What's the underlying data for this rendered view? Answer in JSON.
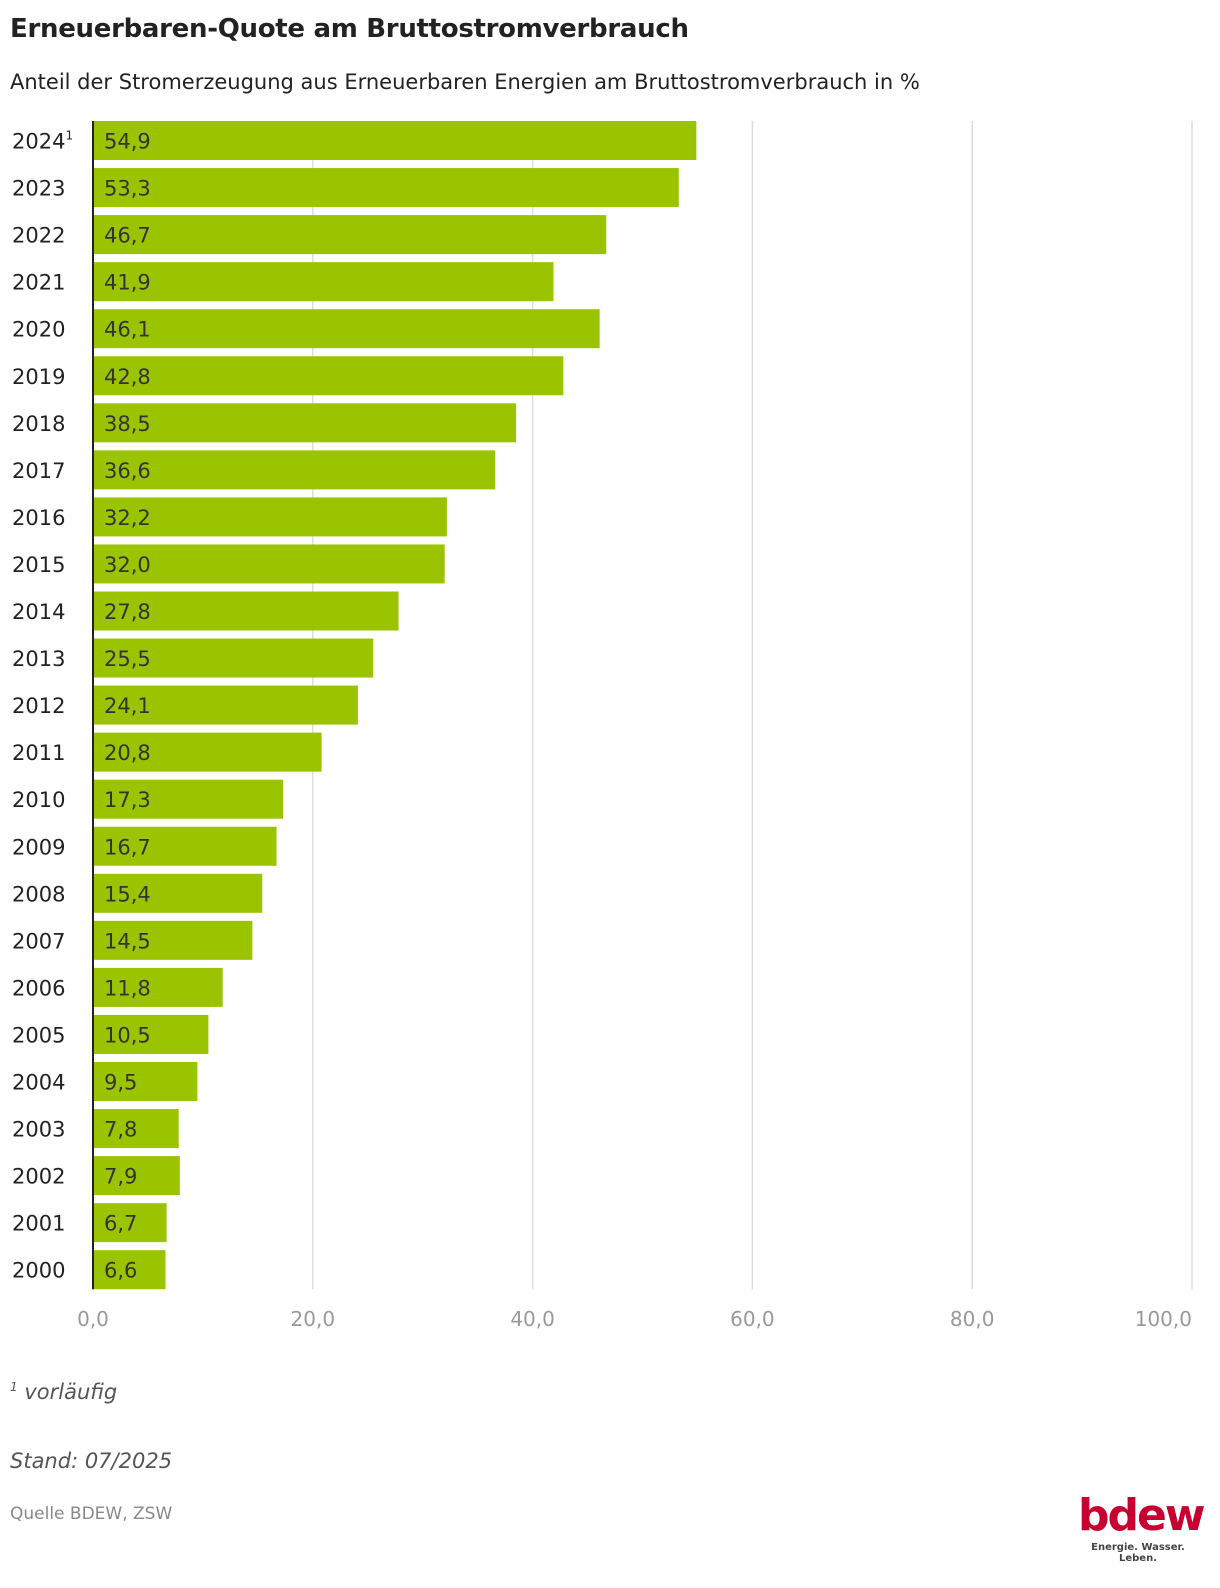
{
  "title": "Erneuerbaren-Quote am Bruttostromverbrauch",
  "subtitle": "Anteil der Stromerzeugung aus Erneuerbaren Energien am Bruttostromverbrauch in %",
  "footnote": {
    "marker": "1",
    "text": "vorläufig"
  },
  "stand": "Stand: 07/2025",
  "source": "Quelle BDEW, ZSW",
  "logo": {
    "word": "bdew",
    "tagline": "Energie. Wasser. Leben."
  },
  "colors": {
    "bar": "#9bc400",
    "grid": "#dddddd",
    "axis": "#222222",
    "brand": "#c8002f"
  },
  "chart_data": {
    "type": "bar",
    "orientation": "horizontal",
    "title": "Erneuerbaren-Quote am Bruttostromverbrauch",
    "xlabel": "",
    "ylabel": "",
    "xlim": [
      0,
      100
    ],
    "grid": true,
    "ticks": [
      "0,0",
      "20,0",
      "40,0",
      "60,0",
      "80,0",
      "100,0"
    ],
    "tick_values": [
      0,
      20,
      40,
      60,
      80,
      100
    ],
    "categories": [
      "2024",
      "2023",
      "2022",
      "2021",
      "2020",
      "2019",
      "2018",
      "2017",
      "2016",
      "2015",
      "2014",
      "2013",
      "2012",
      "2011",
      "2010",
      "2009",
      "2008",
      "2007",
      "2006",
      "2005",
      "2004",
      "2003",
      "2002",
      "2001",
      "2000"
    ],
    "category_superscripts": {
      "2024": "1"
    },
    "values": [
      54.9,
      53.3,
      46.7,
      41.9,
      46.1,
      42.8,
      38.5,
      36.6,
      32.2,
      32.0,
      27.8,
      25.5,
      24.1,
      20.8,
      17.3,
      16.7,
      15.4,
      14.5,
      11.8,
      10.5,
      9.5,
      7.8,
      7.9,
      6.7,
      6.6
    ],
    "labels": [
      "54,9",
      "53,3",
      "46,7",
      "41,9",
      "46,1",
      "42,8",
      "38,5",
      "36,6",
      "32,2",
      "32,0",
      "27,8",
      "25,5",
      "24,1",
      "20,8",
      "17,3",
      "16,7",
      "15,4",
      "14,5",
      "11,8",
      "10,5",
      "9,5",
      "7,8",
      "7,9",
      "6,7",
      "6,6"
    ]
  }
}
